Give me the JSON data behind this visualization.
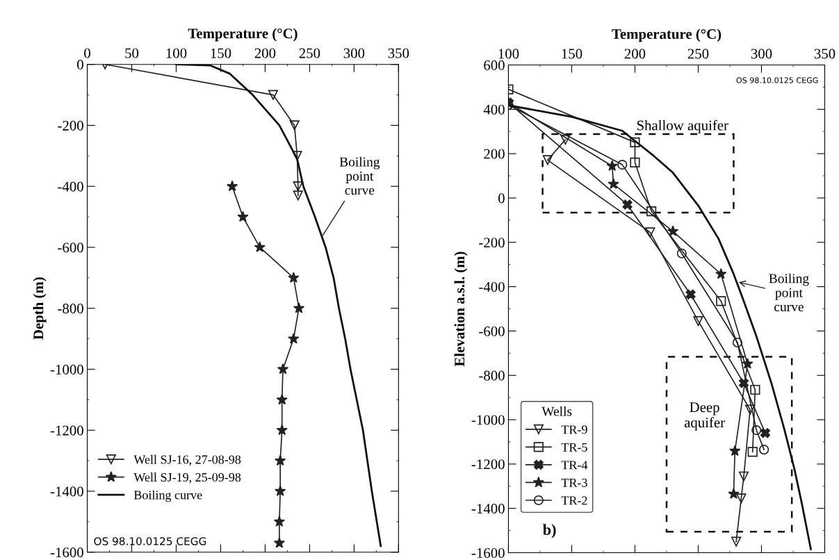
{
  "chart_data": [
    {
      "type": "line",
      "xlabel": "Temperature (°C)",
      "ylabel": "Depth (m)",
      "xlim": [
        0,
        350
      ],
      "xticks": [
        0,
        50,
        100,
        150,
        200,
        250,
        300,
        350
      ],
      "ylim": [
        -1600,
        0
      ],
      "yticks": [
        -1600,
        -1400,
        -1200,
        -1000,
        -800,
        -600,
        -400,
        -200,
        0
      ],
      "legend": "bottom left",
      "grid": false,
      "series": [
        {
          "name": "Well SJ-16, 27-08-98",
          "color": "#222222",
          "marker": "triangle",
          "x": [
            20,
            209,
            233,
            236,
            237,
            237
          ],
          "values": [
            0,
            -100,
            -200,
            -300,
            -400,
            -430
          ]
        },
        {
          "name": "Well SJ-19, 25-09-98",
          "color": "#222222",
          "marker": "star",
          "x": [
            163,
            175,
            194,
            232,
            238,
            232,
            220,
            219,
            219,
            217,
            217,
            216,
            216
          ],
          "values": [
            -400,
            -500,
            -600,
            -700,
            -800,
            -900,
            -1000,
            -1100,
            -1200,
            -1300,
            -1400,
            -1500,
            -1570
          ]
        },
        {
          "name": "Boiling curve",
          "color": "#111111",
          "marker": "none",
          "x": [
            100,
            138,
            160,
            186,
            216,
            236,
            243,
            256,
            268,
            277,
            283,
            290,
            296,
            310,
            320,
            330
          ],
          "values": [
            0,
            -3,
            -30,
            -100,
            -200,
            -310,
            -400,
            -500,
            -600,
            -700,
            -800,
            -900,
            -1000,
            -1200,
            -1400,
            -1580
          ]
        }
      ],
      "annotations": [
        {
          "text": "Boiling\npoint\ncurve",
          "x": 265,
          "y": -560
        },
        "OS 98.10.0125 CEGG"
      ]
    },
    {
      "type": "line",
      "xlabel": "Temperature (°C)",
      "ylabel": "Elevation a.s.l. (m)",
      "xlim": [
        100,
        350
      ],
      "xticks": [
        100,
        150,
        200,
        250,
        300,
        350
      ],
      "ylim": [
        -1600,
        600
      ],
      "yticks": [
        -1600,
        -1400,
        -1200,
        -1000,
        -800,
        -600,
        -400,
        -200,
        0,
        200,
        400,
        600
      ],
      "legend": "bottom left",
      "legend_title": "Wells",
      "grid": false,
      "series": [
        {
          "name": "TR-9",
          "color": "#222222",
          "marker": "triangle",
          "x": [
            145,
            131,
            212,
            250,
            291,
            286,
            284,
            280
          ],
          "values": [
            263,
            171,
            -155,
            -555,
            -955,
            -1256,
            -1355,
            -1550
          ]
        },
        {
          "name": "TR-5",
          "color": "#222222",
          "marker": "square",
          "x": [
            100,
            200,
            200,
            213,
            268,
            295,
            293
          ],
          "values": [
            490,
            251,
            160,
            -60,
            -465,
            -865,
            -1145
          ]
        },
        {
          "name": "TR-4",
          "color": "#222222",
          "marker": "cross",
          "x": [
            100,
            194,
            244,
            286,
            303
          ],
          "values": [
            430,
            -30,
            -435,
            -835,
            -1060
          ]
        },
        {
          "name": "TR-3",
          "color": "#222222",
          "marker": "star",
          "x": [
            100,
            182,
            183,
            230,
            268,
            289,
            279,
            278
          ],
          "values": [
            430,
            144,
            63,
            -150,
            -343,
            -748,
            -1141,
            -1335
          ]
        },
        {
          "name": "TR-2",
          "color": "#222222",
          "marker": "circle",
          "x": [
            100,
            190,
            237,
            281,
            296,
            302
          ],
          "values": [
            420,
            150,
            -250,
            -652,
            -1047,
            -1135
          ]
        },
        {
          "color": "#111111",
          "marker": "none",
          "x": [
            101,
            150,
            190,
            214,
            230,
            250,
            266,
            278,
            285,
            296,
            308,
            318,
            326,
            332,
            339
          ],
          "values": [
            417,
            366,
            303,
            194,
            114,
            -34,
            -183,
            -343,
            -450,
            -624,
            -838,
            -1042,
            -1222,
            -1381,
            -1584
          ]
        }
      ],
      "annotations": [
        {
          "text": "Boiling\npoint\ncurve",
          "x": 282,
          "y": -380
        },
        "Shallow aquifer",
        "Deep\naquifer",
        "b)",
        "OS 98.10.0125 CEGG"
      ]
    }
  ]
}
